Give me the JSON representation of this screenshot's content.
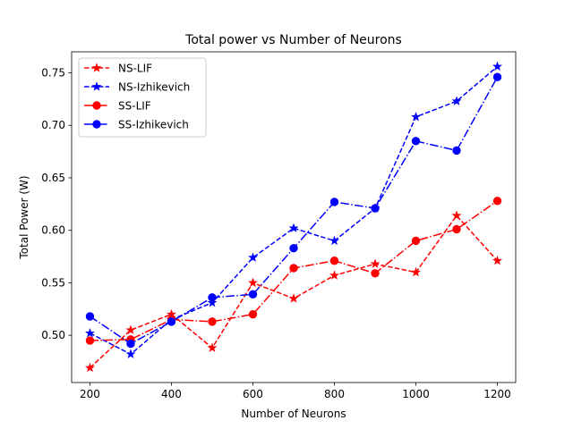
{
  "chart_data": {
    "type": "line",
    "title": "Total power vs Number of Neurons",
    "xlabel": "Number of Neurons",
    "ylabel": "Total Power (W)",
    "xlim": [
      155,
      1245
    ],
    "ylim": [
      0.455,
      0.77
    ],
    "xticks": [
      200,
      400,
      600,
      800,
      1000,
      1200
    ],
    "yticks": [
      0.5,
      0.55,
      0.6,
      0.65,
      0.7,
      0.75
    ],
    "x": [
      200,
      300,
      400,
      500,
      600,
      700,
      800,
      900,
      1000,
      1100,
      1200
    ],
    "grid": false,
    "legend_position": "top-left",
    "series": [
      {
        "name": "NS-LIF",
        "color": "#ff0000",
        "dash": "dashed",
        "marker": "star",
        "values": [
          0.469,
          0.505,
          0.52,
          0.488,
          0.55,
          0.535,
          0.557,
          0.568,
          0.56,
          0.614,
          0.571
        ]
      },
      {
        "name": "NS-Izhikevich",
        "color": "#0000ff",
        "dash": "dashed",
        "marker": "star",
        "values": [
          0.502,
          0.482,
          0.515,
          0.531,
          0.574,
          0.602,
          0.59,
          0.621,
          0.708,
          0.723,
          0.756
        ]
      },
      {
        "name": "SS-LIF",
        "color": "#ff0000",
        "dash": "dashdot",
        "marker": "circle",
        "values": [
          0.495,
          0.496,
          0.515,
          0.513,
          0.52,
          0.564,
          0.571,
          0.559,
          0.59,
          0.601,
          0.628
        ]
      },
      {
        "name": "SS-Izhikevich",
        "color": "#0000ff",
        "dash": "dashdot",
        "marker": "circle",
        "values": [
          0.518,
          0.492,
          0.513,
          0.536,
          0.539,
          0.583,
          0.627,
          0.621,
          0.685,
          0.676,
          0.746
        ]
      }
    ]
  }
}
